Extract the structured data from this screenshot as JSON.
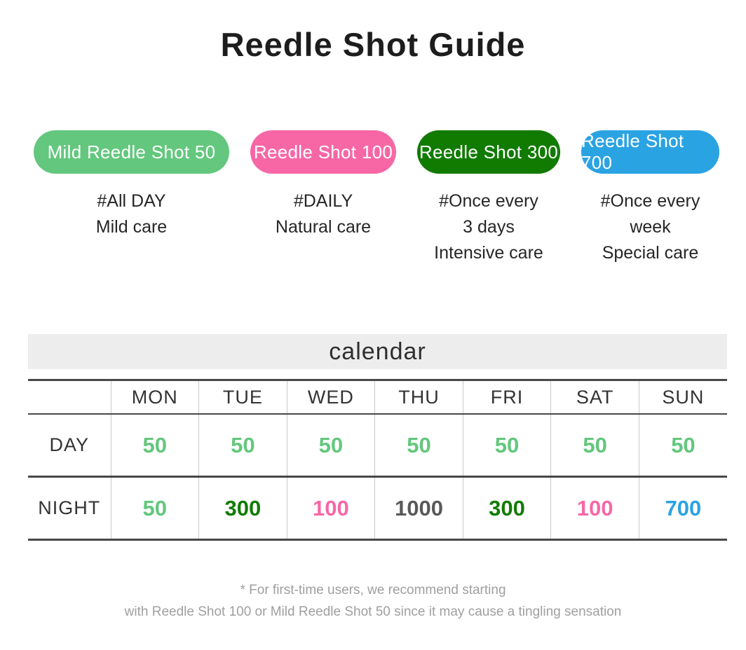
{
  "title": "Reedle Shot Guide",
  "products": [
    {
      "name": "Mild Reedle Shot 50",
      "color": "#63c77d",
      "tags": [
        "#All DAY",
        "Mild care"
      ]
    },
    {
      "name": "Reedle Shot 100",
      "color": "#f767a6",
      "tags": [
        "#DAILY",
        "Natural care"
      ]
    },
    {
      "name": "Reedle Shot 300",
      "color": "#117b01",
      "tags": [
        "#Once every",
        "3 days",
        "Intensive care"
      ]
    },
    {
      "name": "Reedle Shot 700",
      "color": "#2aa3e2",
      "tags": [
        "#Once every",
        "week",
        "Special care"
      ]
    }
  ],
  "calendar": {
    "heading": "calendar",
    "columns": [
      "MON",
      "TUE",
      "WED",
      "THU",
      "FRI",
      "SAT",
      "SUN"
    ],
    "rows": [
      {
        "label": "DAY",
        "values": [
          {
            "text": "50",
            "color": "#63c77d"
          },
          {
            "text": "50",
            "color": "#63c77d"
          },
          {
            "text": "50",
            "color": "#63c77d"
          },
          {
            "text": "50",
            "color": "#63c77d"
          },
          {
            "text": "50",
            "color": "#63c77d"
          },
          {
            "text": "50",
            "color": "#63c77d"
          },
          {
            "text": "50",
            "color": "#63c77d"
          }
        ]
      },
      {
        "label": "NIGHT",
        "values": [
          {
            "text": "50",
            "color": "#63c77d"
          },
          {
            "text": "300",
            "color": "#117b01"
          },
          {
            "text": "100",
            "color": "#f767a6"
          },
          {
            "text": "1000",
            "color": "#595959"
          },
          {
            "text": "300",
            "color": "#117b01"
          },
          {
            "text": "100",
            "color": "#f767a6"
          },
          {
            "text": "700",
            "color": "#2aa3e2"
          }
        ]
      }
    ]
  },
  "footnote": {
    "line1": "* For first-time users, we recommend starting",
    "line2": "with Reedle Shot 100 or Mild Reedle Shot 50 since it may cause a tingling sensation"
  }
}
